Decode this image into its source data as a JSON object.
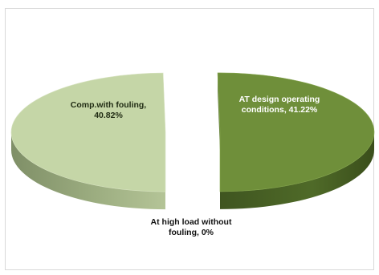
{
  "chart_data": {
    "type": "pie",
    "title": "",
    "slices": [
      {
        "label": "Comp.with fouling, 40.82%",
        "value": 40.82,
        "color": "#c5d6a7"
      },
      {
        "label": "AT design operating conditions, 41.22%",
        "value": 41.22,
        "color": "#6f8f3a"
      },
      {
        "label": "At high load without fouling, 0%",
        "value": 0,
        "color": "#d9d9d9"
      }
    ],
    "style": "3d-exploded",
    "legend": "none"
  }
}
